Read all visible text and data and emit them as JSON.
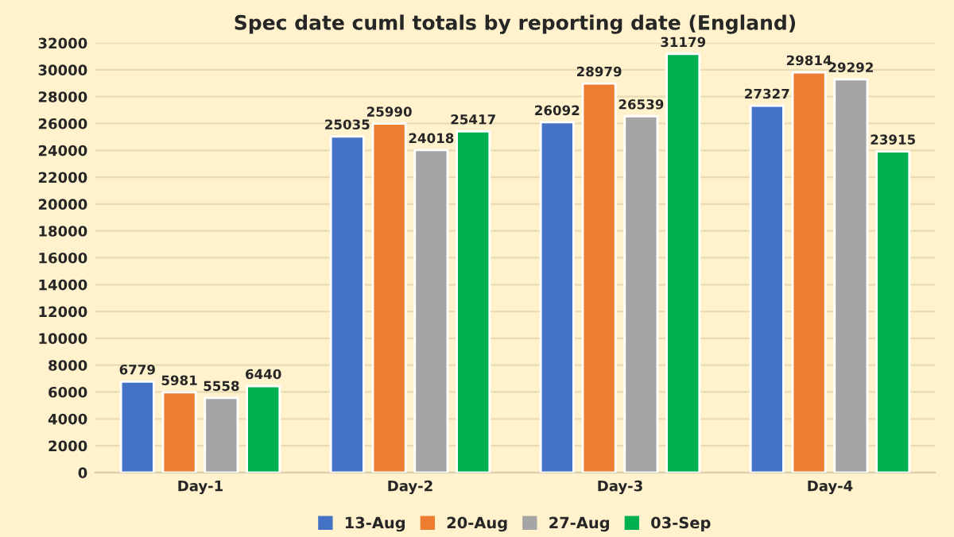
{
  "chart_data": {
    "type": "bar",
    "title": "Spec date cuml totals by reporting date (England)",
    "categories": [
      "Day-1",
      "Day-2",
      "Day-3",
      "Day-4"
    ],
    "series": [
      {
        "name": "13-Aug",
        "color": "#4472c4",
        "values": [
          6779,
          25035,
          26092,
          27327
        ]
      },
      {
        "name": "20-Aug",
        "color": "#ed7d31",
        "values": [
          5981,
          25990,
          28979,
          29814
        ]
      },
      {
        "name": "27-Aug",
        "color": "#a5a5a5",
        "values": [
          5558,
          24018,
          26539,
          29292
        ]
      },
      {
        "name": "03-Sep",
        "color": "#00b050",
        "values": [
          6440,
          25417,
          31179,
          23915
        ]
      }
    ],
    "ylim": [
      0,
      32000
    ],
    "yticks": [
      0,
      2000,
      4000,
      6000,
      8000,
      10000,
      12000,
      14000,
      16000,
      18000,
      20000,
      22000,
      24000,
      26000,
      28000,
      30000,
      32000
    ],
    "grid": "y",
    "legend": "bottom",
    "data_labels": true
  }
}
